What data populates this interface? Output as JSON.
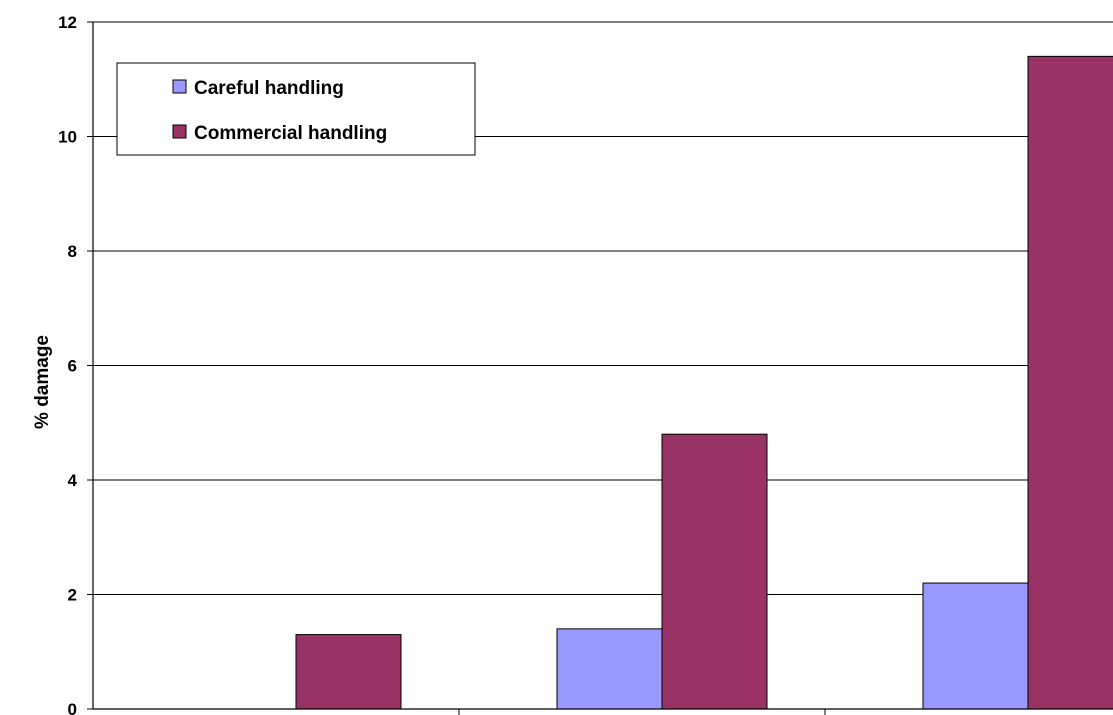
{
  "chart_data": {
    "type": "bar",
    "title": "",
    "xlabel": "",
    "ylabel": "% damage",
    "ylim": [
      0,
      12
    ],
    "yticks": [
      "0",
      "2",
      "4",
      "6",
      "8",
      "10",
      "12"
    ],
    "grid": true,
    "legend_position": "top-left",
    "series": [
      {
        "name": "Careful handling",
        "color": "#9999ff",
        "values": [
          0,
          1.4,
          2.2
        ]
      },
      {
        "name": "Commercial handling",
        "color": "#993366",
        "values": [
          1.3,
          4.8,
          11.4
        ]
      }
    ]
  }
}
